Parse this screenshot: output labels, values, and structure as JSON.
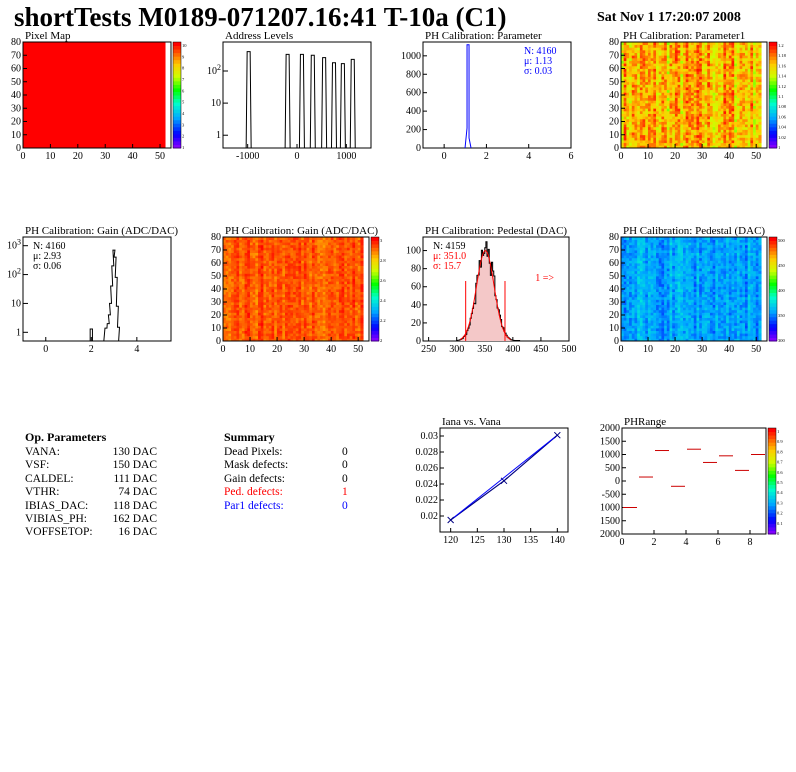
{
  "header": {
    "title": "shortTests M0189-071207.16:41 T-10a (C1)",
    "date": "Sat Nov  1 17:20:07 2008"
  },
  "params": {
    "heading": "Op. Parameters",
    "rows": [
      {
        "name": "VANA:",
        "value": "130 DAC"
      },
      {
        "name": "VSF:",
        "value": "150 DAC"
      },
      {
        "name": "CALDEL:",
        "value": "111 DAC"
      },
      {
        "name": "VTHR:",
        "value": "74 DAC"
      },
      {
        "name": "IBIAS_DAC:",
        "value": "118 DAC"
      },
      {
        "name": "VIBIAS_PH:",
        "value": "162 DAC"
      },
      {
        "name": "VOFFSETOP:",
        "value": "16 DAC"
      }
    ]
  },
  "summary": {
    "heading": "Summary",
    "rows": [
      {
        "name": "Dead Pixels:",
        "value": "0",
        "color": "#000000"
      },
      {
        "name": "Mask defects:",
        "value": "0",
        "color": "#000000"
      },
      {
        "name": "Gain defects:",
        "value": "0",
        "color": "#000000"
      },
      {
        "name": "Ped. defects:",
        "value": "1",
        "color": "#ff0000"
      },
      {
        "name": "Par1 defects:",
        "value": "0",
        "color": "#0000ff"
      }
    ]
  },
  "chart_data": [
    {
      "id": "pixelmap",
      "type": "heatmap",
      "title": "Pixel Map",
      "xlim": [
        0,
        52
      ],
      "ylim": [
        0,
        80
      ],
      "xticks": [
        "0",
        "10",
        "20",
        "30",
        "40",
        "50"
      ],
      "yticks": [
        "0",
        "10",
        "20",
        "30",
        "40",
        "50",
        "60",
        "70",
        "80"
      ],
      "uniform_value": 10,
      "zlim": [
        0,
        10
      ],
      "zticks": [
        "10",
        "9",
        "8",
        "7",
        "6",
        "5",
        "4",
        "3",
        "2",
        "1"
      ]
    },
    {
      "id": "address",
      "type": "bar",
      "title": "Address Levels",
      "log_y": true,
      "xlim": [
        -1500,
        1500
      ],
      "ylim": [
        0.4,
        800
      ],
      "xticks": [
        "-1000",
        "0",
        "1000"
      ],
      "yticks": [
        "1",
        "10",
        "10^2"
      ],
      "peaks": [
        {
          "x": -970,
          "y": 400
        },
        {
          "x": -180,
          "y": 330
        },
        {
          "x": 110,
          "y": 330
        },
        {
          "x": 330,
          "y": 310
        },
        {
          "x": 560,
          "y": 260
        },
        {
          "x": 760,
          "y": 180
        },
        {
          "x": 940,
          "y": 170
        },
        {
          "x": 1140,
          "y": 230
        }
      ]
    },
    {
      "id": "phparam",
      "type": "bar",
      "title": "PH Calibration: Parameter",
      "xlim": [
        -1,
        6
      ],
      "ylim": [
        0,
        1150
      ],
      "xticks": [
        "0",
        "2",
        "4",
        "6"
      ],
      "yticks": [
        "0",
        "200",
        "400",
        "600",
        "800",
        "1000"
      ],
      "peak": {
        "mean": 1.13,
        "max": 1120
      },
      "stats": [
        {
          "label": "N: 4160"
        },
        {
          "label": "μ: 1.13"
        },
        {
          "label": "σ: 0.03"
        }
      ],
      "color": "#0000ff"
    },
    {
      "id": "par1map",
      "type": "heatmap",
      "title": "PH Calibration: Parameter1",
      "xlim": [
        0,
        52
      ],
      "ylim": [
        0,
        80
      ],
      "xticks": [
        "0",
        "10",
        "20",
        "30",
        "40",
        "50"
      ],
      "yticks": [
        "0",
        "10",
        "20",
        "30",
        "40",
        "50",
        "60",
        "70",
        "80"
      ],
      "zticks": [
        "1.2",
        "1.18",
        "1.16",
        "1.14",
        "1.12",
        "1.1",
        "1.08",
        "1.06",
        "1.04",
        "1.02",
        "1"
      ],
      "palette": "warm"
    },
    {
      "id": "gainhist",
      "type": "bar",
      "title": "PH Calibration: Gain (ADC/DAC)",
      "log_y": true,
      "xlim": [
        -1,
        5.5
      ],
      "ylim": [
        0.5,
        2000
      ],
      "xticks": [
        "0",
        "2",
        "4"
      ],
      "yticks": [
        "1",
        "10",
        "10^2",
        "10^3"
      ],
      "peak": {
        "mean": 2.93,
        "max": 700
      },
      "stats": [
        {
          "label": "N: 4160"
        },
        {
          "label": "μ: 2.93"
        },
        {
          "label": "σ: 0.06"
        }
      ]
    },
    {
      "id": "gainmap",
      "type": "heatmap",
      "title": "PH Calibration: Gain (ADC/DAC)",
      "xlim": [
        0,
        52
      ],
      "ylim": [
        0,
        80
      ],
      "xticks": [
        "0",
        "10",
        "20",
        "30",
        "40",
        "50"
      ],
      "yticks": [
        "0",
        "10",
        "20",
        "30",
        "40",
        "50",
        "60",
        "70",
        "80"
      ],
      "zticks": [
        "3",
        "2.8",
        "2.6",
        "2.4",
        "2.2",
        "2"
      ],
      "palette": "red"
    },
    {
      "id": "pedhist",
      "type": "bar",
      "title": "PH Calibration: Pedestal (DAC)",
      "xlim": [
        240,
        500
      ],
      "ylim": [
        0,
        115
      ],
      "xticks": [
        "250",
        "300",
        "350",
        "400",
        "450",
        "500"
      ],
      "yticks": [
        "0",
        "20",
        "40",
        "60",
        "80",
        "100"
      ],
      "peak": {
        "mean": 351.0,
        "sigma": 15.7,
        "max": 100
      },
      "cuts": [
        316,
        386
      ],
      "arrow_label": "1 =>",
      "stats": [
        {
          "label": "N: 4159",
          "color": "#000000"
        },
        {
          "label": "μ: 351.0",
          "color": "#ff0000"
        },
        {
          "label": "σ: 15.7",
          "color": "#ff0000"
        }
      ]
    },
    {
      "id": "pedmap",
      "type": "heatmap",
      "title": "PH Calibration: Pedestal (DAC)",
      "xlim": [
        0,
        52
      ],
      "ylim": [
        0,
        80
      ],
      "xticks": [
        "0",
        "10",
        "20",
        "30",
        "40",
        "50"
      ],
      "yticks": [
        "0",
        "10",
        "20",
        "30",
        "40",
        "50",
        "60",
        "70",
        "80"
      ],
      "zticks": [
        "500",
        "450",
        "400",
        "350",
        "300"
      ],
      "palette": "blue"
    },
    {
      "id": "iana",
      "type": "line",
      "title": "Iana vs. Vana",
      "x": [
        120,
        130,
        140
      ],
      "y": [
        0.0195,
        0.0244,
        0.0301
      ],
      "xlim": [
        118,
        142
      ],
      "ylim": [
        0.018,
        0.031
      ],
      "xticks": [
        "120",
        "125",
        "130",
        "135",
        "140"
      ],
      "yticks": [
        "0.02",
        "0.022",
        "0.024",
        "0.026",
        "0.028",
        "0.03"
      ]
    },
    {
      "id": "phrange",
      "type": "scatter",
      "title": "PHRange",
      "x": [
        0,
        1,
        2,
        3,
        4,
        5,
        6,
        7,
        8
      ],
      "y": [
        -1000,
        150,
        1150,
        -200,
        1200,
        700,
        950,
        400,
        1000
      ],
      "xlim": [
        0,
        9
      ],
      "ylim": [
        -2000,
        2000
      ],
      "xticks": [
        "0",
        "2",
        "4",
        "6",
        "8"
      ],
      "yticks": [
        "2000",
        "1500",
        "1000",
        "500",
        "0",
        "-500",
        "1000",
        "1500",
        "2000"
      ],
      "zticks": [
        "1",
        "0.9",
        "0.8",
        "0.7",
        "0.6",
        "0.5",
        "0.4",
        "0.3",
        "0.2",
        "0.1",
        "0"
      ]
    }
  ]
}
